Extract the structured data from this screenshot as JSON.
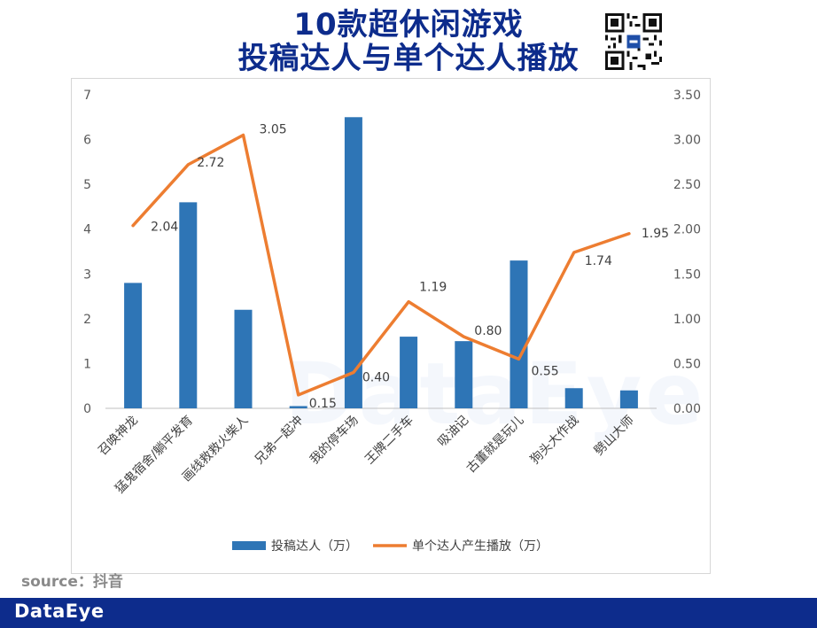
{
  "title_line1": "10款超休闲游戏",
  "title_line2": "投稿达人与单个达人播放",
  "source": "source：抖音",
  "brand": "DataEye",
  "watermark": "DataEye",
  "chart_data": {
    "type": "bar",
    "categories": [
      "召唤神龙",
      "猛鬼宿舍/躺平发育",
      "画线救救火柴人",
      "兄弟一起冲",
      "我的停车场",
      "王牌二手车",
      "吸油记",
      "古董就是玩儿",
      "狗头大作战",
      "劈山大师"
    ],
    "series": [
      {
        "name": "投稿达人（万）",
        "type": "bar",
        "axis": "left",
        "color": "#2e75b6",
        "values": [
          2.8,
          4.6,
          2.2,
          0.05,
          6.5,
          1.6,
          1.5,
          3.3,
          0.45,
          0.4
        ]
      },
      {
        "name": "单个达人产生播放（万）",
        "type": "line",
        "axis": "right",
        "color": "#ed7d31",
        "values": [
          2.04,
          2.72,
          3.05,
          0.15,
          0.4,
          1.19,
          0.8,
          0.55,
          1.74,
          1.95
        ],
        "labels": [
          "2.04",
          "2.72",
          "3.05",
          "0.15",
          "0.40",
          "1.19",
          "0.80",
          "0.55",
          "1.74",
          "1.95"
        ]
      }
    ],
    "ylim_left": [
      0,
      7
    ],
    "ylim_right": [
      0,
      3.5
    ],
    "yticks_left": [
      "0",
      "1",
      "2",
      "3",
      "4",
      "5",
      "6",
      "7"
    ],
    "yticks_right": [
      "0.00",
      "0.50",
      "1.00",
      "1.50",
      "2.00",
      "2.50",
      "3.00",
      "3.50"
    ],
    "legend_position": "bottom",
    "grid": false
  }
}
